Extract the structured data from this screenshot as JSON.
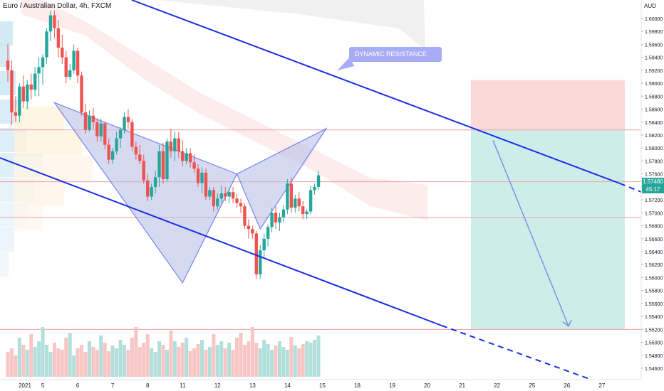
{
  "title": {
    "symbol_name": "Euro / Australian Dollar",
    "interval": "4h",
    "exchange": "FXCM"
  },
  "currency_label": "AUD",
  "price_badge": {
    "price": "1.57480",
    "countdown": "45:17"
  },
  "annotation": {
    "text": "DYNAMIC RESISTANCE"
  },
  "colors": {
    "bull": "#26a69a",
    "bear": "#ef5350",
    "channel": "#1a2ee8",
    "pattern_fill": "#b3bde6",
    "target_zone": "#cdeee8",
    "stop_zone": "#fcd9d9",
    "level_line": "#f0a0a0",
    "forecast_arrow": "#7f8fe6"
  },
  "chart_data": {
    "type": "candlestick",
    "symbol": "Euro / Australian Dollar",
    "interval": "4h",
    "y_axis": {
      "ticks": [
        1.6,
        1.598,
        1.596,
        1.594,
        1.592,
        1.59,
        1.588,
        1.586,
        1.584,
        1.582,
        1.58,
        1.578,
        1.576,
        1.574,
        1.572,
        1.57,
        1.568,
        1.566,
        1.564,
        1.562,
        1.56,
        1.558,
        1.556,
        1.554,
        1.552,
        1.55,
        1.548,
        1.546
      ],
      "tick_labels": [
        "1.60000",
        "1.59800",
        "1.59600",
        "1.59400",
        "1.59200",
        "1.59000",
        "1.58800",
        "1.58600",
        "1.58400",
        "1.58200",
        "1.58000",
        "1.57800",
        "1.57600",
        "1.57400",
        "1.57200",
        "1.57000",
        "1.56800",
        "1.56600",
        "1.56400",
        "1.56200",
        "1.56000",
        "1.55800",
        "1.55600",
        "1.55400",
        "1.55200",
        "1.55000",
        "1.54800",
        "1.54600"
      ],
      "range": [
        1.5448,
        1.6019
      ]
    },
    "x_axis": {
      "tick_labels": [
        "2021",
        "5",
        "6",
        "7",
        "8",
        "11",
        "12",
        "13",
        "14",
        "15",
        "18",
        "19",
        "20",
        "21",
        "22",
        "25",
        "26",
        "27"
      ],
      "tick_index": [
        0,
        9,
        18,
        27,
        36,
        45,
        54,
        63,
        72,
        81,
        90,
        99,
        108,
        117,
        126,
        135,
        144,
        153
      ]
    },
    "candles": [
      [
        1.5935,
        1.596,
        1.5902,
        1.592
      ],
      [
        1.592,
        1.5935,
        1.5835,
        1.5855
      ],
      [
        1.5855,
        1.588,
        1.584,
        1.585
      ],
      [
        1.585,
        1.59,
        1.584,
        1.5895
      ],
      [
        1.5895,
        1.5912,
        1.5862,
        1.5872
      ],
      [
        1.5872,
        1.5905,
        1.586,
        1.5898
      ],
      [
        1.5898,
        1.5915,
        1.5875,
        1.589
      ],
      [
        1.589,
        1.5925,
        1.588,
        1.5915
      ],
      [
        1.5915,
        1.594,
        1.588,
        1.5925
      ],
      [
        1.5925,
        1.5945,
        1.5898,
        1.594
      ],
      [
        1.594,
        1.5985,
        1.593,
        1.598
      ],
      [
        1.598,
        1.6012,
        1.5965,
        1.6005
      ],
      [
        1.6005,
        1.6012,
        1.597,
        1.5985
      ],
      [
        1.5985,
        1.5998,
        1.594,
        1.5955
      ],
      [
        1.5955,
        1.5975,
        1.593,
        1.594
      ],
      [
        1.594,
        1.595,
        1.59,
        1.591
      ],
      [
        1.591,
        1.593,
        1.5905,
        1.592
      ],
      [
        1.592,
        1.596,
        1.5915,
        1.595
      ],
      [
        1.595,
        1.5955,
        1.59,
        1.5912
      ],
      [
        1.5912,
        1.5918,
        1.585,
        1.5855
      ],
      [
        1.5855,
        1.5868,
        1.5822,
        1.5828
      ],
      [
        1.5828,
        1.5858,
        1.5825,
        1.585
      ],
      [
        1.585,
        1.5862,
        1.583,
        1.584
      ],
      [
        1.584,
        1.5846,
        1.581,
        1.5818
      ],
      [
        1.5818,
        1.5845,
        1.581,
        1.5838
      ],
      [
        1.5838,
        1.584,
        1.5798,
        1.5805
      ],
      [
        1.5805,
        1.5815,
        1.5776,
        1.5782
      ],
      [
        1.5782,
        1.58,
        1.5776,
        1.5795
      ],
      [
        1.5795,
        1.5825,
        1.579,
        1.5815
      ],
      [
        1.5815,
        1.5832,
        1.58,
        1.5828
      ],
      [
        1.5828,
        1.5855,
        1.5822,
        1.5848
      ],
      [
        1.5848,
        1.586,
        1.583,
        1.584
      ],
      [
        1.584,
        1.5845,
        1.5795,
        1.5802
      ],
      [
        1.5802,
        1.581,
        1.5782,
        1.579
      ],
      [
        1.579,
        1.5805,
        1.5775,
        1.578
      ],
      [
        1.578,
        1.579,
        1.5745,
        1.575
      ],
      [
        1.575,
        1.576,
        1.5718,
        1.5725
      ],
      [
        1.5725,
        1.5745,
        1.572,
        1.574
      ],
      [
        1.574,
        1.5765,
        1.573,
        1.5755
      ],
      [
        1.5755,
        1.5805,
        1.574,
        1.5795
      ],
      [
        1.5795,
        1.5808,
        1.5745,
        1.5752
      ],
      [
        1.5752,
        1.5815,
        1.5748,
        1.581
      ],
      [
        1.581,
        1.583,
        1.5785,
        1.5795
      ],
      [
        1.5795,
        1.5825,
        1.578,
        1.5815
      ],
      [
        1.5815,
        1.5825,
        1.5785,
        1.5795
      ],
      [
        1.5795,
        1.5812,
        1.5772,
        1.578
      ],
      [
        1.578,
        1.58,
        1.5775,
        1.5792
      ],
      [
        1.5792,
        1.58,
        1.577,
        1.5778
      ],
      [
        1.5778,
        1.579,
        1.5762,
        1.5768
      ],
      [
        1.5768,
        1.5775,
        1.574,
        1.5746
      ],
      [
        1.5746,
        1.577,
        1.573,
        1.5762
      ],
      [
        1.5762,
        1.5768,
        1.572,
        1.5725
      ],
      [
        1.5725,
        1.574,
        1.572,
        1.5735
      ],
      [
        1.5735,
        1.574,
        1.5702,
        1.571
      ],
      [
        1.571,
        1.573,
        1.5705,
        1.5722
      ],
      [
        1.5722,
        1.5742,
        1.5715,
        1.573
      ],
      [
        1.573,
        1.574,
        1.5718,
        1.5725
      ],
      [
        1.5725,
        1.5738,
        1.5715,
        1.5732
      ],
      [
        1.5732,
        1.574,
        1.5715,
        1.5722
      ],
      [
        1.5722,
        1.573,
        1.5708,
        1.5715
      ],
      [
        1.5715,
        1.5722,
        1.57,
        1.571
      ],
      [
        1.571,
        1.5715,
        1.5675,
        1.568
      ],
      [
        1.568,
        1.569,
        1.566,
        1.5675
      ],
      [
        1.5675,
        1.568,
        1.566,
        1.5668
      ],
      [
        1.5668,
        1.5672,
        1.5598,
        1.5605
      ],
      [
        1.5605,
        1.565,
        1.5598,
        1.5642
      ],
      [
        1.5642,
        1.5668,
        1.563,
        1.566
      ],
      [
        1.566,
        1.5682,
        1.5648,
        1.5678
      ],
      [
        1.5678,
        1.5708,
        1.567,
        1.57
      ],
      [
        1.57,
        1.571,
        1.5675,
        1.5685
      ],
      [
        1.5685,
        1.57,
        1.5672,
        1.5693
      ],
      [
        1.5693,
        1.5712,
        1.5685,
        1.5705
      ],
      [
        1.5705,
        1.5752,
        1.5698,
        1.5745
      ],
      [
        1.5745,
        1.5755,
        1.57,
        1.5708
      ],
      [
        1.5708,
        1.5728,
        1.57,
        1.5722
      ],
      [
        1.5722,
        1.5732,
        1.5702,
        1.571
      ],
      [
        1.571,
        1.5718,
        1.569,
        1.5698
      ],
      [
        1.5698,
        1.5706,
        1.569,
        1.5702
      ],
      [
        1.5702,
        1.5742,
        1.5698,
        1.5735
      ],
      [
        1.5735,
        1.5745,
        1.5728,
        1.574
      ],
      [
        1.574,
        1.5765,
        1.5735,
        1.5758
      ]
    ],
    "horizontal_levels": [
      1.5828,
      1.5748,
      1.5693,
      1.552
    ],
    "harmonic_pattern": [
      [
        12,
        1.587
      ],
      [
        45,
        1.5592
      ],
      [
        59,
        1.576
      ],
      [
        65,
        1.5675
      ],
      [
        82,
        1.583
      ]
    ],
    "channel_lines": [
      {
        "from": [
          0,
          1.604
        ],
        "to": [
          150,
          1.574
        ]
      },
      {
        "from": [
          0,
          1.579
        ],
        "to": [
          150,
          1.543
        ]
      }
    ],
    "risk_reward": {
      "entry": 1.5828,
      "stop": 1.5905,
      "target": 1.552
    },
    "forecast_arrow": {
      "from": [
        84,
        1.5812
      ],
      "to": [
        95,
        1.5525
      ]
    }
  }
}
